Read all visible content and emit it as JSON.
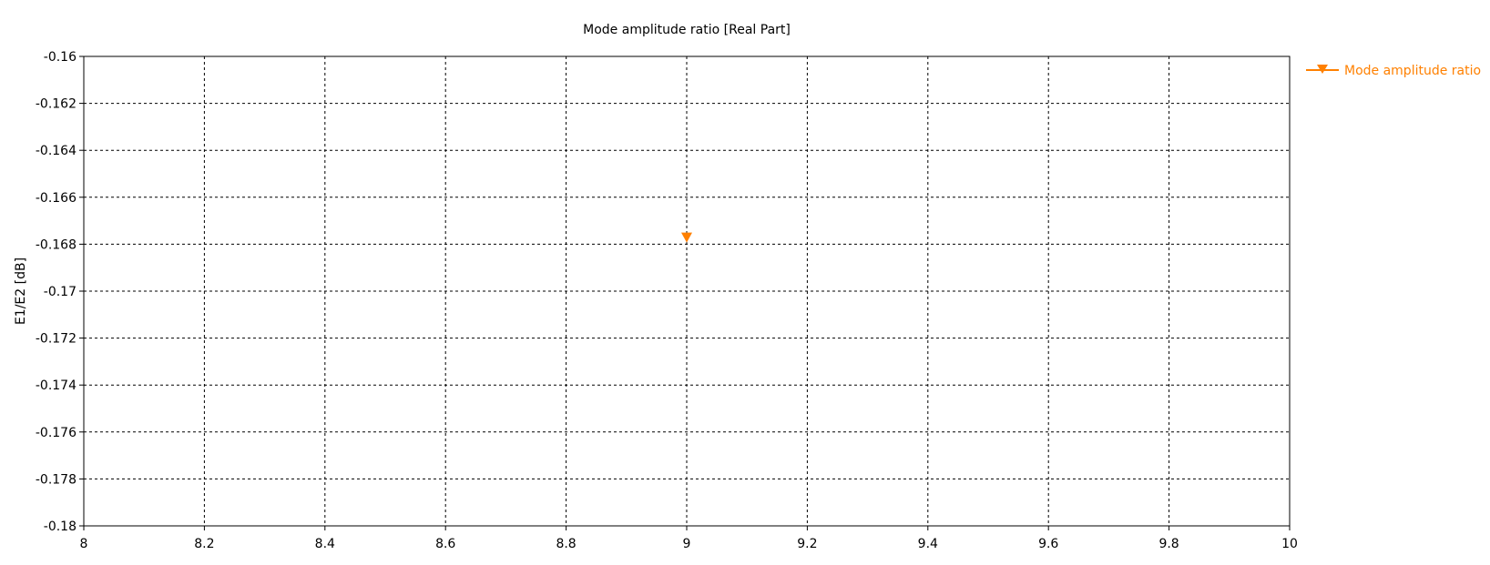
{
  "chart_data": {
    "type": "scatter",
    "title": "Mode amplitude ratio [Real Part]",
    "xlabel": "",
    "ylabel": "E1/E2 [dB]",
    "xlim": [
      8,
      10
    ],
    "ylim": [
      -0.18,
      -0.16
    ],
    "x_ticks": [
      "8",
      "8.2",
      "8.4",
      "8.6",
      "8.8",
      "9",
      "9.2",
      "9.4",
      "9.6",
      "9.8",
      "10"
    ],
    "y_ticks": [
      "-0.16",
      "-0.162",
      "-0.164",
      "-0.166",
      "-0.168",
      "-0.17",
      "-0.172",
      "-0.174",
      "-0.176",
      "-0.178",
      "-0.18"
    ],
    "grid": true,
    "legend_position": "top-right",
    "series": [
      {
        "name": "Mode amplitude ratio",
        "color": "#ff8000",
        "marker": "triangle-down",
        "points": [
          {
            "x": 9,
            "y": -0.1677
          }
        ]
      }
    ]
  }
}
